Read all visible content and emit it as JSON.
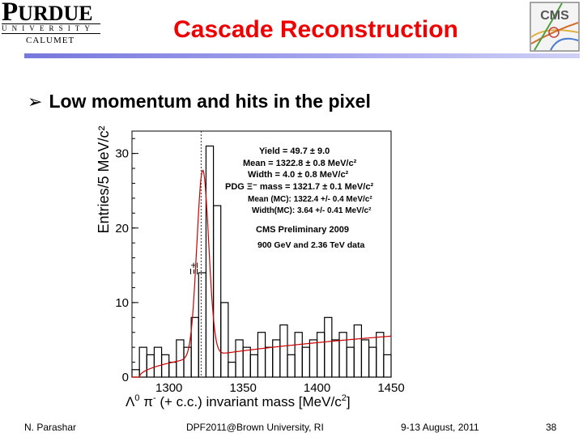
{
  "header": {
    "logo": {
      "name_cap": "P",
      "name_rest": "URDUE",
      "university": "UNIVERSITY",
      "campus": "CALUMET"
    },
    "title": "Cascade Reconstruction",
    "partner_logo": "CMS"
  },
  "bullet": {
    "text": "Low momentum and hits in the pixel"
  },
  "chart_data": {
    "type": "histogram",
    "ylabel": "Entries/5 MeV/c²",
    "xlabel_parts": {
      "a": "Λ",
      "a_sup": "0",
      "b": " π",
      "b_sup": "-",
      "c": " (+ c.c.) invariant mass   [MeV/c",
      "c_sup": "2",
      "d": "]"
    },
    "xlim": [
      1275,
      1450
    ],
    "ylim": [
      0,
      33
    ],
    "x_ticks": [
      "1300",
      "1350",
      "1400",
      "1450"
    ],
    "y_ticks": [
      "0",
      "10",
      "20",
      "30"
    ],
    "particle_label": "Ξ±",
    "bin_width": 5,
    "bin_edges_start": 1275,
    "counts": [
      1,
      4,
      3,
      4,
      3,
      2,
      5,
      4,
      8,
      14,
      31,
      23,
      10,
      2,
      5,
      4,
      3,
      6,
      4,
      5,
      7,
      3,
      6,
      4,
      5,
      6,
      8,
      5,
      6,
      4,
      7,
      5,
      4,
      6,
      3
    ],
    "fit": {
      "mean": 1322.8,
      "width": 4.0,
      "bg_level": 5.5
    },
    "stats": [
      {
        "text": "Yield = 49.7 ± 9.0"
      },
      {
        "text": "Mean = 1322.8 ± 0.8 MeV/c²"
      },
      {
        "text": "Width = 4.0 ± 0.8 MeV/c²"
      },
      {
        "text": "PDG Ξ⁻ mass = 1321.7 ± 0.1 MeV/c²"
      },
      {
        "text": "Mean (MC): 1322.4 +/- 0.4 MeV/c²"
      },
      {
        "text": "Width(MC): 3.64 +/- 0.41 MeV/c²"
      },
      {
        "text": "CMS Preliminary 2009"
      },
      {
        "text": "900 GeV and 2.36 TeV data"
      }
    ],
    "colors": {
      "fit": "#cc0000",
      "data": "#000000",
      "pdg_line": "#333333"
    }
  },
  "footer": {
    "author": "N. Parashar",
    "event": "DPF2011@Brown University, RI",
    "date": "9-13 August, 2011",
    "page": "38"
  }
}
